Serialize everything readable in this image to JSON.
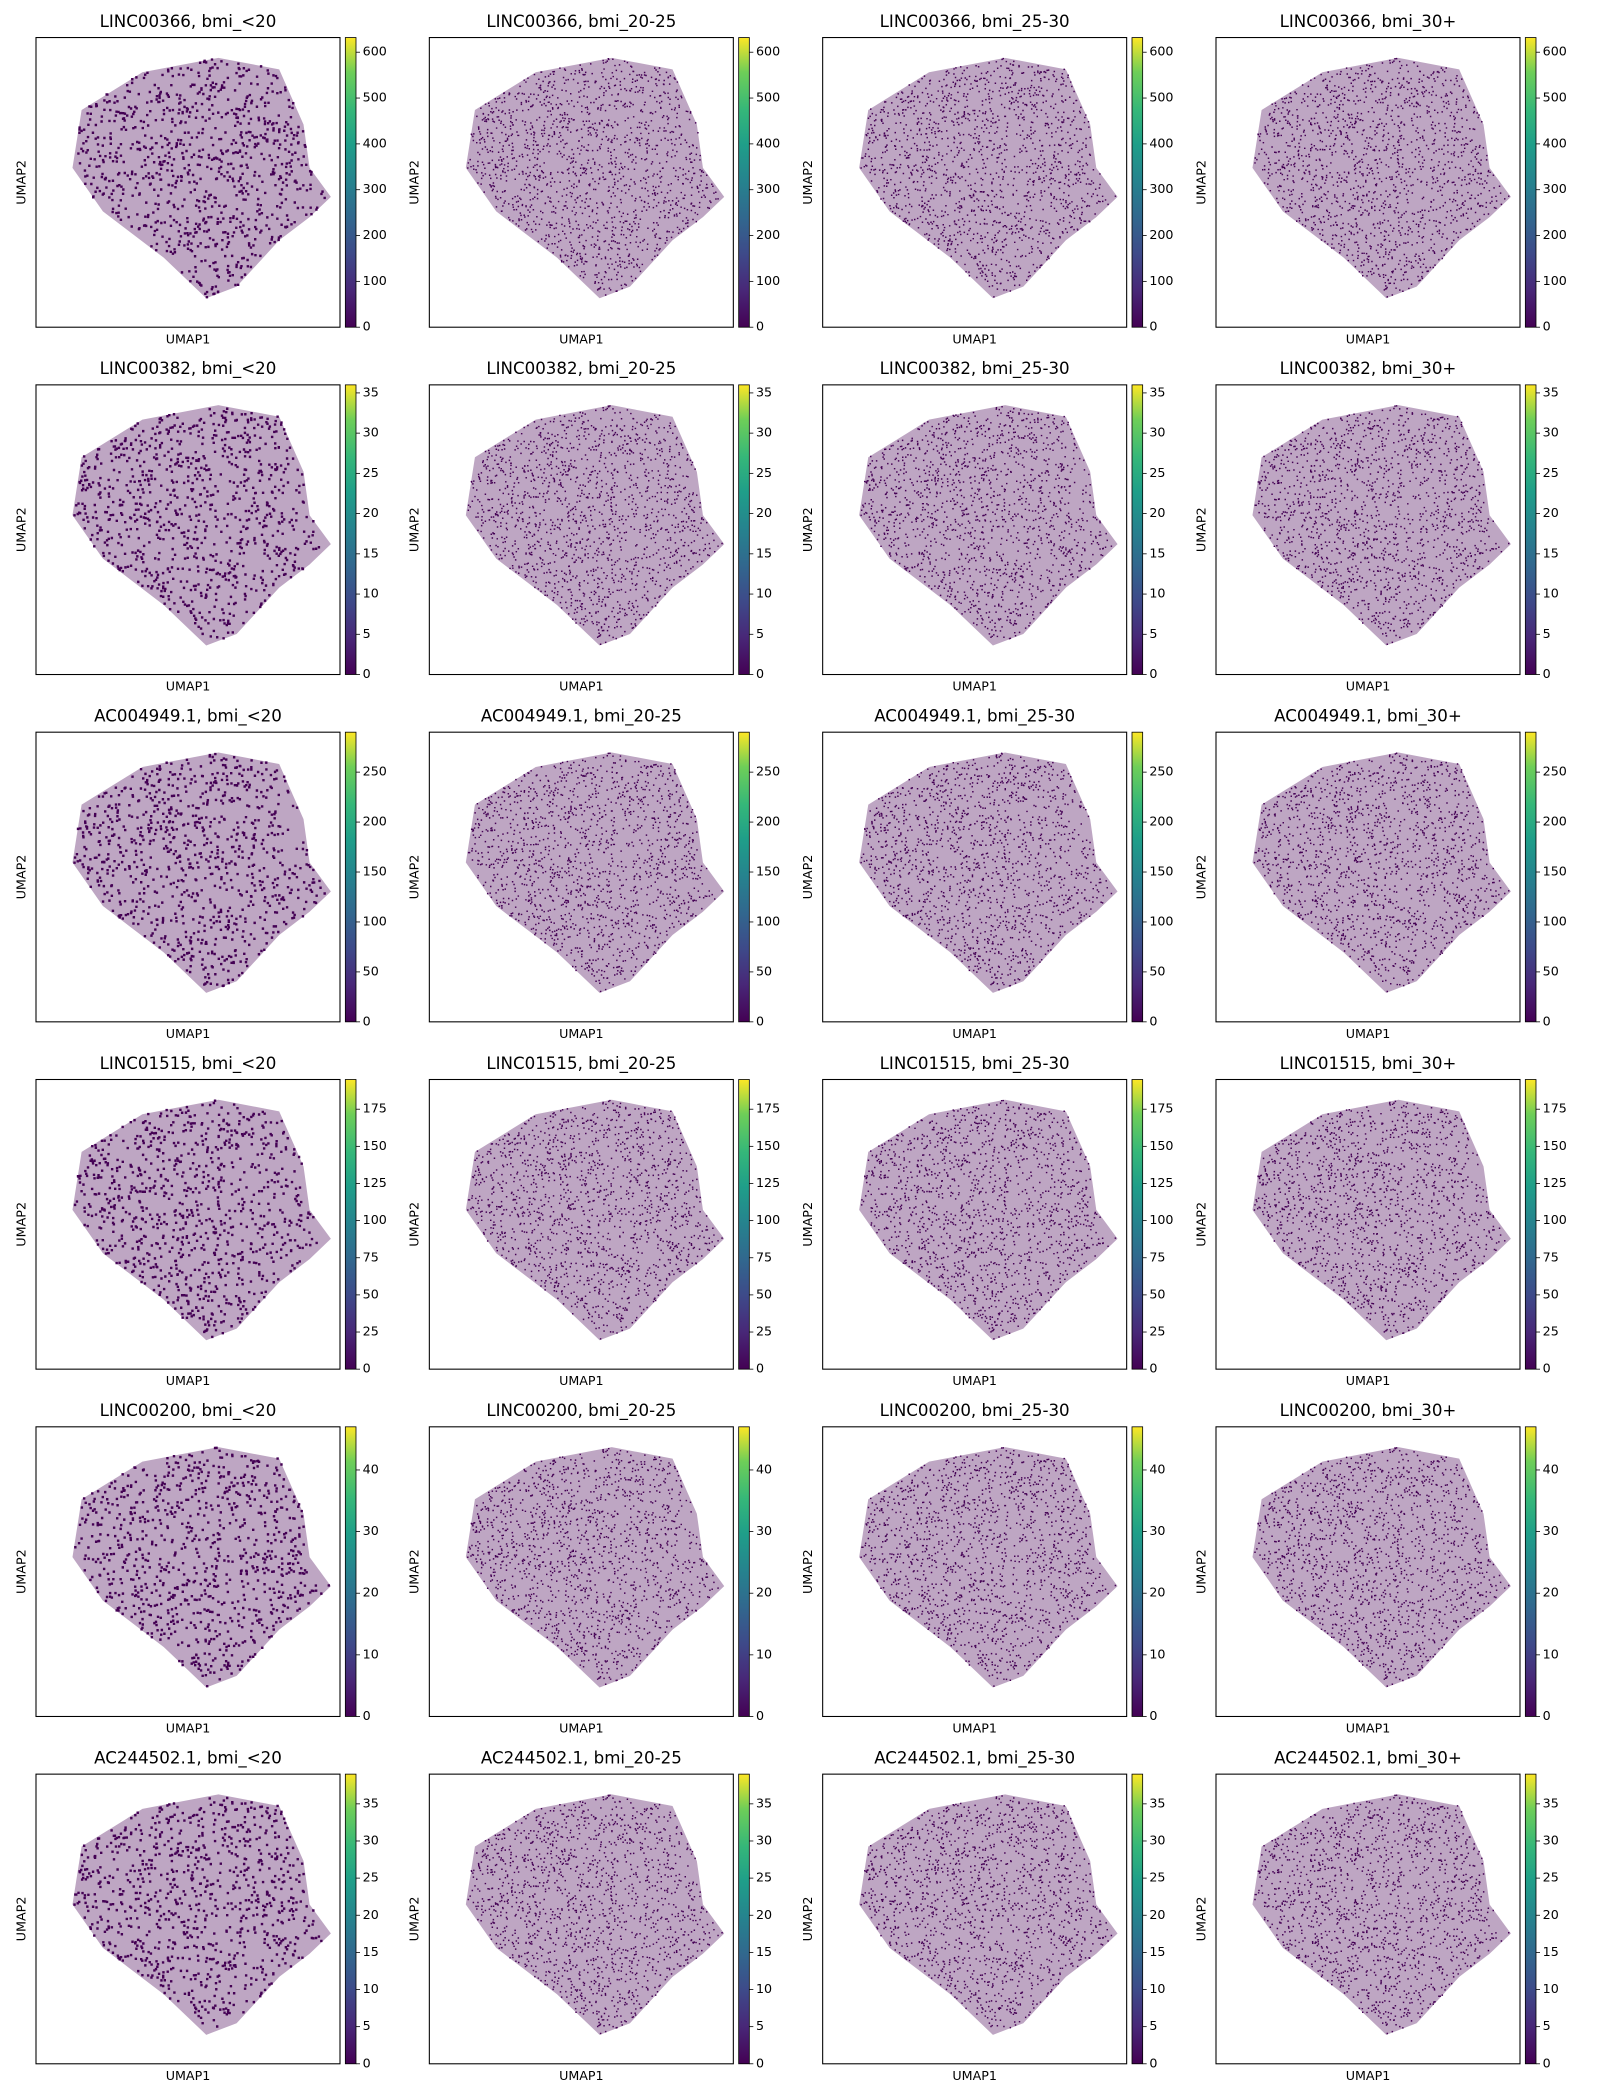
{
  "chart_data": [
    {
      "type": "scatter",
      "title": "LINC00366, bmi_<20",
      "xlabel": "UMAP1",
      "ylabel": "UMAP2",
      "colormap": "viridis",
      "clim": [
        0,
        632
      ],
      "cticks": [
        0,
        100,
        200,
        300,
        400,
        500,
        600
      ]
    },
    {
      "type": "scatter",
      "title": "LINC00366, bmi_20-25",
      "xlabel": "UMAP1",
      "ylabel": "UMAP2",
      "colormap": "viridis",
      "clim": [
        0,
        632
      ],
      "cticks": [
        0,
        100,
        200,
        300,
        400,
        500,
        600
      ]
    },
    {
      "type": "scatter",
      "title": "LINC00366, bmi_25-30",
      "xlabel": "UMAP1",
      "ylabel": "UMAP2",
      "colormap": "viridis",
      "clim": [
        0,
        632
      ],
      "cticks": [
        0,
        100,
        200,
        300,
        400,
        500,
        600
      ]
    },
    {
      "type": "scatter",
      "title": "LINC00366, bmi_30+",
      "xlabel": "UMAP1",
      "ylabel": "UMAP2",
      "colormap": "viridis",
      "clim": [
        0,
        632
      ],
      "cticks": [
        0,
        100,
        200,
        300,
        400,
        500,
        600
      ]
    },
    {
      "type": "scatter",
      "title": "LINC00382, bmi_<20",
      "xlabel": "UMAP1",
      "ylabel": "UMAP2",
      "colormap": "viridis",
      "clim": [
        0,
        36
      ],
      "cticks": [
        0,
        5,
        10,
        15,
        20,
        25,
        30,
        35
      ]
    },
    {
      "type": "scatter",
      "title": "LINC00382, bmi_20-25",
      "xlabel": "UMAP1",
      "ylabel": "UMAP2",
      "colormap": "viridis",
      "clim": [
        0,
        36
      ],
      "cticks": [
        0,
        5,
        10,
        15,
        20,
        25,
        30,
        35
      ]
    },
    {
      "type": "scatter",
      "title": "LINC00382, bmi_25-30",
      "xlabel": "UMAP1",
      "ylabel": "UMAP2",
      "colormap": "viridis",
      "clim": [
        0,
        36
      ],
      "cticks": [
        0,
        5,
        10,
        15,
        20,
        25,
        30,
        35
      ]
    },
    {
      "type": "scatter",
      "title": "LINC00382, bmi_30+",
      "xlabel": "UMAP1",
      "ylabel": "UMAP2",
      "colormap": "viridis",
      "clim": [
        0,
        36
      ],
      "cticks": [
        0,
        5,
        10,
        15,
        20,
        25,
        30,
        35
      ]
    },
    {
      "type": "scatter",
      "title": "AC004949.1, bmi_<20",
      "xlabel": "UMAP1",
      "ylabel": "UMAP2",
      "colormap": "viridis",
      "clim": [
        0,
        290
      ],
      "cticks": [
        0,
        50,
        100,
        150,
        200,
        250
      ]
    },
    {
      "type": "scatter",
      "title": "AC004949.1, bmi_20-25",
      "xlabel": "UMAP1",
      "ylabel": "UMAP2",
      "colormap": "viridis",
      "clim": [
        0,
        290
      ],
      "cticks": [
        0,
        50,
        100,
        150,
        200,
        250
      ]
    },
    {
      "type": "scatter",
      "title": "AC004949.1, bmi_25-30",
      "xlabel": "UMAP1",
      "ylabel": "UMAP2",
      "colormap": "viridis",
      "clim": [
        0,
        290
      ],
      "cticks": [
        0,
        50,
        100,
        150,
        200,
        250
      ]
    },
    {
      "type": "scatter",
      "title": "AC004949.1, bmi_30+",
      "xlabel": "UMAP1",
      "ylabel": "UMAP2",
      "colormap": "viridis",
      "clim": [
        0,
        290
      ],
      "cticks": [
        0,
        50,
        100,
        150,
        200,
        250
      ]
    },
    {
      "type": "scatter",
      "title": "LINC01515, bmi_<20",
      "xlabel": "UMAP1",
      "ylabel": "UMAP2",
      "colormap": "viridis",
      "clim": [
        0,
        195
      ],
      "cticks": [
        0,
        25,
        50,
        75,
        100,
        125,
        150,
        175
      ]
    },
    {
      "type": "scatter",
      "title": "LINC01515, bmi_20-25",
      "xlabel": "UMAP1",
      "ylabel": "UMAP2",
      "colormap": "viridis",
      "clim": [
        0,
        195
      ],
      "cticks": [
        0,
        25,
        50,
        75,
        100,
        125,
        150,
        175
      ]
    },
    {
      "type": "scatter",
      "title": "LINC01515, bmi_25-30",
      "xlabel": "UMAP1",
      "ylabel": "UMAP2",
      "colormap": "viridis",
      "clim": [
        0,
        195
      ],
      "cticks": [
        0,
        25,
        50,
        75,
        100,
        125,
        150,
        175
      ]
    },
    {
      "type": "scatter",
      "title": "LINC01515, bmi_30+",
      "xlabel": "UMAP1",
      "ylabel": "UMAP2",
      "colormap": "viridis",
      "clim": [
        0,
        195
      ],
      "cticks": [
        0,
        25,
        50,
        75,
        100,
        125,
        150,
        175
      ]
    },
    {
      "type": "scatter",
      "title": "LINC00200, bmi_<20",
      "xlabel": "UMAP1",
      "ylabel": "UMAP2",
      "colormap": "viridis",
      "clim": [
        0,
        47
      ],
      "cticks": [
        0,
        10,
        20,
        30,
        40
      ]
    },
    {
      "type": "scatter",
      "title": "LINC00200, bmi_20-25",
      "xlabel": "UMAP1",
      "ylabel": "UMAP2",
      "colormap": "viridis",
      "clim": [
        0,
        47
      ],
      "cticks": [
        0,
        10,
        20,
        30,
        40
      ]
    },
    {
      "type": "scatter",
      "title": "LINC00200, bmi_25-30",
      "xlabel": "UMAP1",
      "ylabel": "UMAP2",
      "colormap": "viridis",
      "clim": [
        0,
        47
      ],
      "cticks": [
        0,
        10,
        20,
        30,
        40
      ]
    },
    {
      "type": "scatter",
      "title": "LINC00200, bmi_30+",
      "xlabel": "UMAP1",
      "ylabel": "UMAP2",
      "colormap": "viridis",
      "clim": [
        0,
        47
      ],
      "cticks": [
        0,
        10,
        20,
        30,
        40
      ]
    },
    {
      "type": "scatter",
      "title": "AC244502.1, bmi_<20",
      "xlabel": "UMAP1",
      "ylabel": "UMAP2",
      "colormap": "viridis",
      "clim": [
        0,
        39
      ],
      "cticks": [
        0,
        5,
        10,
        15,
        20,
        25,
        30,
        35
      ]
    },
    {
      "type": "scatter",
      "title": "AC244502.1, bmi_20-25",
      "xlabel": "UMAP1",
      "ylabel": "UMAP2",
      "colormap": "viridis",
      "clim": [
        0,
        39
      ],
      "cticks": [
        0,
        5,
        10,
        15,
        20,
        25,
        30,
        35
      ]
    },
    {
      "type": "scatter",
      "title": "AC244502.1, bmi_25-30",
      "xlabel": "UMAP1",
      "ylabel": "UMAP2",
      "colormap": "viridis",
      "clim": [
        0,
        39
      ],
      "cticks": [
        0,
        5,
        10,
        15,
        20,
        25,
        30,
        35
      ]
    },
    {
      "type": "scatter",
      "title": "AC244502.1, bmi_30+",
      "xlabel": "UMAP1",
      "ylabel": "UMAP2",
      "colormap": "viridis",
      "clim": [
        0,
        39
      ],
      "cticks": [
        0,
        5,
        10,
        15,
        20,
        25,
        30,
        35
      ]
    }
  ]
}
